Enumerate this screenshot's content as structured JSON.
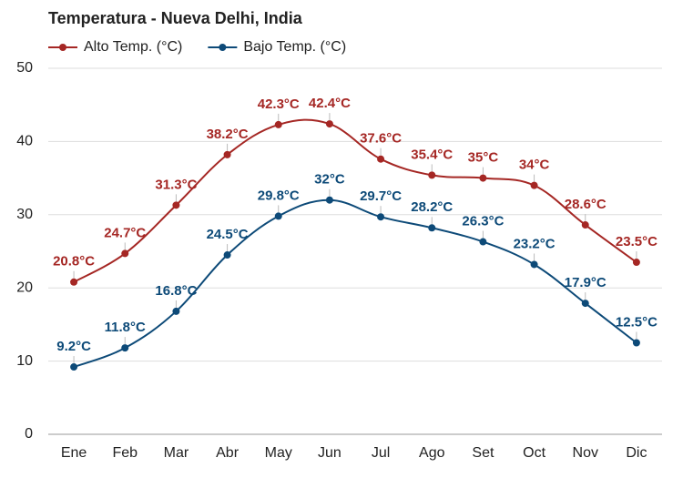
{
  "chart_data": {
    "type": "line",
    "title": "Temperatura - Nueva Delhi, India",
    "categories": [
      "Ene",
      "Feb",
      "Mar",
      "Abr",
      "May",
      "Jun",
      "Jul",
      "Ago",
      "Set",
      "Oct",
      "Nov",
      "Dic"
    ],
    "series": [
      {
        "name": "Alto Temp. (°C)",
        "color": "#a52724",
        "values": [
          20.8,
          24.7,
          31.3,
          38.2,
          42.3,
          42.4,
          37.6,
          35.4,
          35,
          34,
          28.6,
          23.5
        ],
        "value_labels": [
          "20.8°C",
          "24.7°C",
          "31.3°C",
          "38.2°C",
          "42.3°C",
          "42.4°C",
          "37.6°C",
          "35.4°C",
          "35°C",
          "34°C",
          "28.6°C",
          "23.5°C"
        ]
      },
      {
        "name": "Bajo Temp. (°C)",
        "color": "#0d4a78",
        "values": [
          9.2,
          11.8,
          16.8,
          24.5,
          29.8,
          32,
          29.7,
          28.2,
          26.3,
          23.2,
          17.9,
          12.5
        ],
        "value_labels": [
          "9.2°C",
          "11.8°C",
          "16.8°C",
          "24.5°C",
          "29.8°C",
          "32°C",
          "29.7°C",
          "28.2°C",
          "26.3°C",
          "23.2°C",
          "17.9°C",
          "12.5°C"
        ]
      }
    ],
    "ylim": [
      0,
      50
    ],
    "yticks": [
      0,
      10,
      20,
      30,
      40,
      50
    ],
    "grid": true,
    "legend": "top-left"
  }
}
